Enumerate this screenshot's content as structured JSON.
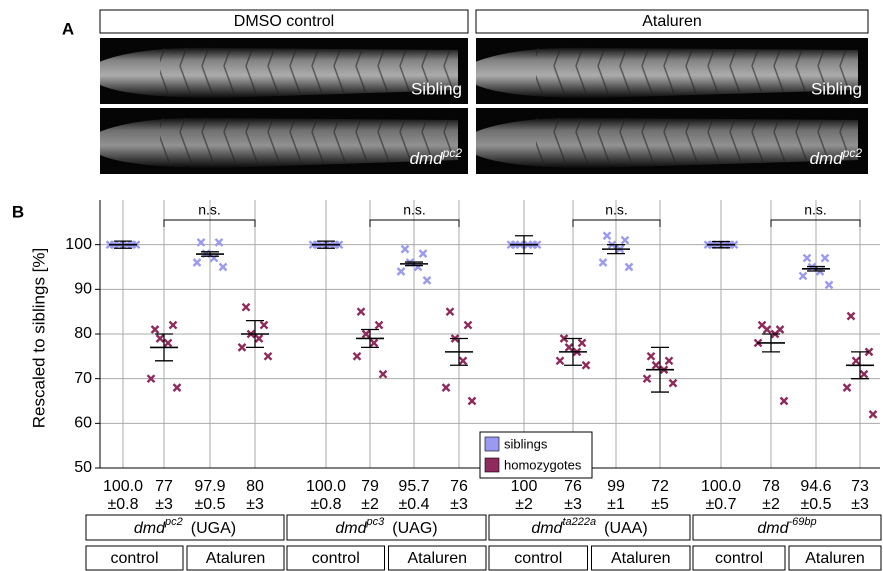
{
  "panel_a": {
    "label": "A",
    "columns": [
      "DMSO control",
      "Ataluren"
    ],
    "rows": [
      {
        "label": "Sibling"
      },
      {
        "gene": "dmd",
        "allele": "pc2"
      }
    ]
  },
  "chart_data": {
    "type": "dot",
    "panel_label": "B",
    "ylabel": "Rescaled to siblings [%]",
    "ylim": [
      50,
      110
    ],
    "yticks": [
      50,
      60,
      70,
      80,
      90,
      100
    ],
    "grid": true,
    "legend": "lower center",
    "groups": [
      {
        "gene": "dmd",
        "allele": "pc2",
        "codon": "(UGA)",
        "conditions": [
          "control",
          "Ataluren"
        ]
      },
      {
        "gene": "dmd",
        "allele": "pc3",
        "codon": "(UAG)",
        "conditions": [
          "control",
          "Ataluren"
        ]
      },
      {
        "gene": "dmd",
        "allele": "ta222a",
        "codon": "(UAA)",
        "conditions": [
          "control",
          "Ataluren"
        ]
      },
      {
        "gene": "dmd",
        "allele": "-69bp",
        "conditions": [
          "control",
          "Ataluren"
        ]
      }
    ],
    "annotations": [
      "n.s.",
      "n.s.",
      "n.s.",
      "n.s."
    ],
    "series": [
      {
        "name": "siblings",
        "color": "#9a9af2",
        "values": [
          100,
          97.9,
          100,
          95.7,
          100,
          99,
          100,
          94.6
        ],
        "value_labels": [
          "100.0",
          "97.9",
          "100.0",
          "95.7",
          "100",
          "99",
          "100.0",
          "94.6"
        ],
        "errors": [
          0.8,
          0.5,
          0.8,
          0.4,
          2,
          1,
          0.7,
          0.5
        ],
        "error_labels": [
          "±0.8",
          "±0.5",
          "±0.8",
          "±0.4",
          "±2",
          "±1",
          "±0.7",
          "±0.5"
        ],
        "points": [
          [
            100,
            100,
            100,
            100,
            100,
            100
          ],
          [
            100.5,
            100.5,
            98,
            97,
            96,
            95
          ],
          [
            100,
            100,
            100,
            100,
            100,
            100
          ],
          [
            99,
            98,
            96,
            95,
            94,
            92
          ],
          [
            100,
            100,
            100,
            100,
            100,
            100
          ],
          [
            102,
            101,
            100,
            99,
            96,
            95
          ],
          [
            100,
            100,
            100,
            100,
            100,
            100
          ],
          [
            97,
            97,
            95,
            94,
            93,
            91
          ]
        ]
      },
      {
        "name": "homozygotes",
        "color": "#8e2a5c",
        "values": [
          77,
          80,
          79,
          76,
          76,
          72,
          78,
          73
        ],
        "errors": [
          3,
          3,
          2,
          3,
          3,
          5,
          2,
          3
        ],
        "error_labels": [
          "±3",
          "±3",
          "±2",
          "±3",
          "±3",
          "±5",
          "±2",
          "±3"
        ],
        "points": [
          [
            81,
            82,
            79,
            78,
            70,
            68
          ],
          [
            86,
            82,
            80,
            79,
            77,
            75
          ],
          [
            85,
            82,
            80,
            78,
            75,
            71
          ],
          [
            85,
            82,
            79,
            74,
            68,
            65
          ],
          [
            79,
            78,
            77,
            76,
            74,
            73
          ],
          [
            75,
            74,
            73,
            72,
            70,
            69
          ],
          [
            82,
            81,
            81,
            80,
            78,
            65
          ],
          [
            84,
            76,
            74,
            71,
            68,
            62
          ]
        ]
      }
    ]
  }
}
